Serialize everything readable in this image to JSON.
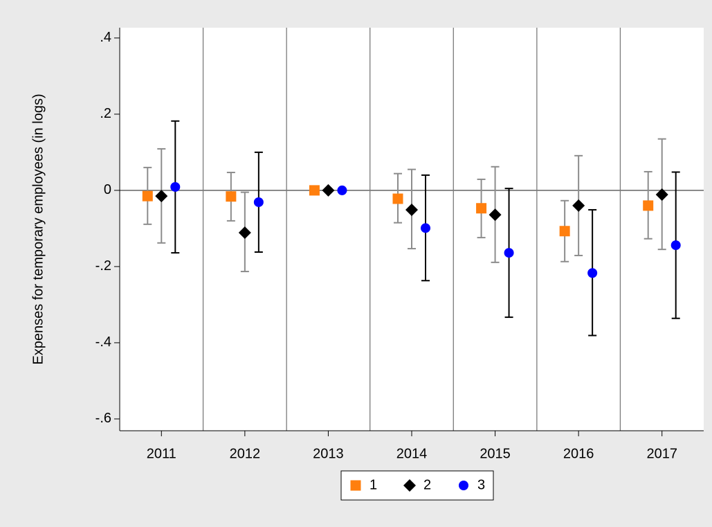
{
  "chart_data": {
    "type": "coefplot",
    "y_label": "Expenses for temporary employees (in logs)",
    "categories": [
      "2011",
      "2012",
      "2013",
      "2014",
      "2015",
      "2016",
      "2017"
    ],
    "series": [
      {
        "name": "1",
        "color": "#ff7f0e",
        "marker": "square",
        "ci_color": "#8c8c8c",
        "values": [
          -0.015,
          -0.016,
          0,
          -0.022,
          -0.047,
          -0.107,
          -0.04
        ],
        "lower": [
          -0.089,
          -0.08,
          0,
          -0.085,
          -0.124,
          -0.187,
          -0.127
        ],
        "upper": [
          0.06,
          0.047,
          0,
          0.044,
          0.029,
          -0.027,
          0.049
        ]
      },
      {
        "name": "2",
        "color": "#000000",
        "marker": "diamond",
        "ci_color": "#8c8c8c",
        "values": [
          -0.015,
          -0.111,
          0,
          -0.051,
          -0.064,
          -0.04,
          -0.011
        ],
        "lower": [
          -0.138,
          -0.213,
          0,
          -0.153,
          -0.189,
          -0.171,
          -0.155
        ],
        "upper": [
          0.109,
          -0.005,
          0,
          0.055,
          0.062,
          0.091,
          0.135
        ]
      },
      {
        "name": "3",
        "color": "#0000ff",
        "marker": "circle",
        "ci_color": "#000000",
        "values": [
          0.009,
          -0.031,
          0,
          -0.099,
          -0.164,
          -0.217,
          -0.144
        ],
        "lower": [
          -0.164,
          -0.162,
          0,
          -0.237,
          -0.333,
          -0.381,
          -0.336
        ],
        "upper": [
          0.182,
          0.1,
          0,
          0.04,
          0.005,
          -0.051,
          0.048
        ]
      }
    ],
    "ylim": [
      -0.631,
      0.427
    ],
    "yticks": [
      {
        "value": -0.6,
        "label": "-.6"
      },
      {
        "value": -0.4,
        "label": "-.4"
      },
      {
        "value": -0.2,
        "label": "-.2"
      },
      0,
      {
        "value": 0.2,
        "label": ".2"
      },
      {
        "value": 0.4,
        "label": ".4"
      }
    ],
    "yline": 0,
    "category_separators": true,
    "legend": "bottom"
  }
}
